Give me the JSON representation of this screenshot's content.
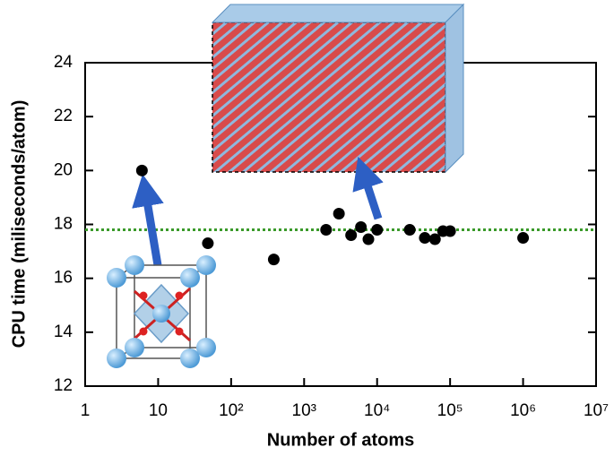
{
  "chart_data": {
    "type": "scatter",
    "xlabel": "Number of atoms",
    "ylabel": "CPU time (miliseconds/atom)",
    "x": [
      6,
      48,
      384,
      2000,
      3000,
      4400,
      6000,
      7600,
      10000,
      28000,
      45000,
      62000,
      80000,
      100000,
      1000000
    ],
    "values": [
      20.0,
      17.3,
      16.7,
      17.8,
      18.4,
      17.6,
      17.9,
      17.45,
      17.8,
      17.8,
      17.5,
      17.45,
      17.75,
      17.75,
      17.5
    ],
    "color": "#000000",
    "reference_line": 17.8,
    "reference_color": "#3a9a2a",
    "xscale": "log",
    "xlim": [
      1,
      10000000
    ],
    "xticks": [
      1,
      10,
      {
        "value": 100,
        "label": "10²"
      },
      {
        "value": 1000,
        "label": "10³"
      },
      {
        "value": 10000,
        "label": "10⁴"
      },
      {
        "value": 100000,
        "label": "10⁵"
      },
      {
        "value": 1000000,
        "label": "10⁶"
      },
      {
        "value": 10000000,
        "label": "10⁷"
      }
    ],
    "ylim": [
      12,
      24
    ],
    "yticks": [
      12,
      14,
      16,
      18,
      20,
      22,
      24
    ]
  }
}
